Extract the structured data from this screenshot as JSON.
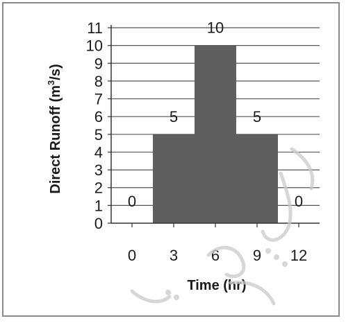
{
  "chart_data": {
    "type": "bar",
    "title": "",
    "xlabel": "Time (hr)",
    "ylabel_main": "Direct Runoff  (m",
    "ylabel_sup": "3",
    "ylabel_tail": "/s)",
    "x_ticks": [
      "0",
      "3",
      "6",
      "9",
      "12"
    ],
    "y_ticks": [
      "0",
      "1",
      "2",
      "3",
      "4",
      "5",
      "6",
      "7",
      "8",
      "9",
      "10",
      "11"
    ],
    "ylim": [
      0,
      11
    ],
    "xlim": [
      -1.5,
      13.5
    ],
    "grid": true,
    "bars": [
      {
        "x": 0,
        "value": 0,
        "label": "0"
      },
      {
        "x": 3,
        "value": 5,
        "label": "5"
      },
      {
        "x": 6,
        "value": 10,
        "label": "10"
      },
      {
        "x": 9,
        "value": 5,
        "label": "5"
      },
      {
        "x": 12,
        "value": 0,
        "label": "0"
      }
    ],
    "bar_color": "#5f5f5f"
  }
}
